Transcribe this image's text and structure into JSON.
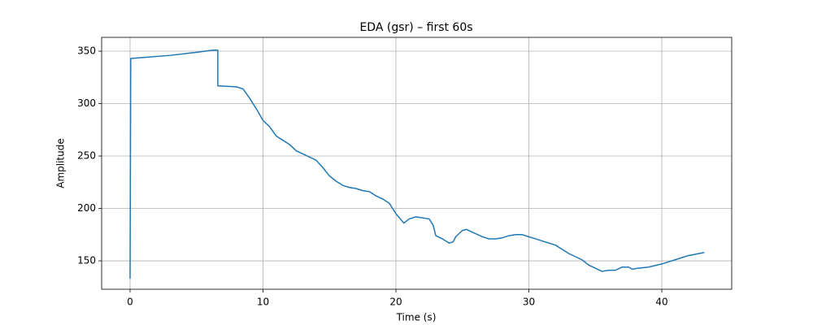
{
  "chart_data": {
    "type": "line",
    "title": "EDA (gsr) – first 60s",
    "x_label": "Time (s)",
    "y_label": "Amplitude",
    "x": [
      0,
      0.05,
      1,
      3,
      5,
      6.2,
      6.6,
      6.6,
      8,
      8.5,
      9,
      9.5,
      10,
      10.5,
      11,
      11.5,
      12,
      12.5,
      13,
      13.5,
      14,
      14.5,
      15,
      15.5,
      16,
      16.5,
      17,
      17.5,
      18,
      18.5,
      19,
      19.5,
      20,
      20.6,
      21,
      21.5,
      22,
      22.5,
      22.8,
      23,
      23.5,
      24,
      24.3,
      24.5,
      25,
      25.3,
      25.8,
      26.5,
      27,
      27.5,
      28,
      28.5,
      29,
      29.5,
      30,
      30.5,
      31,
      31.5,
      32,
      32.5,
      33,
      33.5,
      34,
      34.5,
      35,
      35.5,
      36,
      36.5,
      37,
      37.5,
      37.8,
      38.2,
      39,
      40,
      41,
      42,
      43.2
    ],
    "series": [
      {
        "name": "gsr",
        "color": "#1f77b4",
        "values": [
          133,
          343,
          344,
          346,
          349,
          351,
          351,
          317,
          316,
          314,
          305,
          295,
          284,
          278,
          269,
          265,
          261,
          255,
          252,
          249,
          246,
          239,
          231,
          226,
          222,
          220,
          219,
          217,
          216,
          212,
          209,
          205,
          195,
          186,
          190,
          192,
          191,
          190,
          184,
          174,
          171,
          167,
          168,
          173,
          179,
          180,
          177,
          173,
          171,
          171,
          172,
          174,
          175,
          175,
          173,
          171,
          169,
          167,
          165,
          161,
          157,
          154,
          151,
          146,
          143,
          140,
          141,
          141,
          144,
          144,
          142,
          143,
          144,
          147,
          151,
          155,
          158
        ]
      }
    ],
    "xlim": [
      -2.14,
      45.26
    ],
    "ylim": [
      122.9,
      363.2
    ],
    "xticks": [
      0,
      10,
      20,
      30,
      40
    ],
    "yticks": [
      150,
      200,
      250,
      300,
      350
    ],
    "grid": true
  }
}
